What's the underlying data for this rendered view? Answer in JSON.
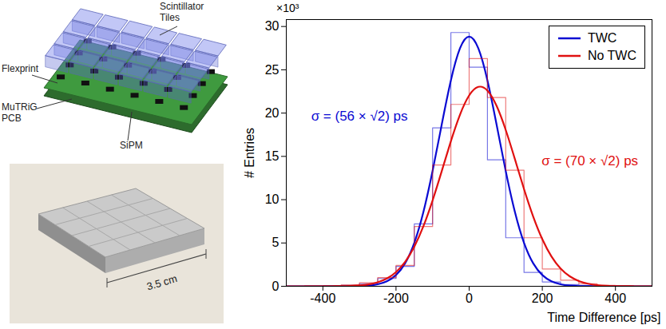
{
  "chart_data": {
    "type": "histogram",
    "xlabel": "Time Difference [ps]",
    "ylabel": "# Entries",
    "y_multiplier": "×10³",
    "xlim": [
      -500,
      500
    ],
    "xticks": [
      -400,
      -200,
      0,
      200,
      400
    ],
    "ylim": [
      0,
      30.8
    ],
    "yticks": [
      0,
      5,
      10,
      15,
      20,
      25,
      30
    ],
    "grid": false,
    "legend": "top-right",
    "bins": [
      -500,
      -450,
      -400,
      -350,
      -300,
      -250,
      -200,
      -150,
      -100,
      -50,
      0,
      50,
      100,
      150,
      200,
      250,
      300,
      350,
      400,
      450,
      500
    ],
    "fit_x": [
      -500,
      -475,
      -450,
      -425,
      -400,
      -375,
      -350,
      -325,
      -300,
      -275,
      -250,
      -225,
      -200,
      -175,
      -150,
      -125,
      -100,
      -75,
      -50,
      -25,
      0,
      25,
      50,
      75,
      100,
      125,
      150,
      175,
      200,
      225,
      250,
      275,
      300,
      325,
      350,
      375,
      400,
      425,
      450,
      475,
      500
    ],
    "series": [
      {
        "name": "TWC",
        "color": "#0a0ad2",
        "values": [
          0,
          0.02,
          0.05,
          0.1,
          0.3,
          0.9,
          2.3,
          7.2,
          18.3,
          29.3,
          25.3,
          14.6,
          5.6,
          1.6,
          0.5,
          0.2,
          0.1,
          0.05,
          0.02,
          0
        ],
        "fit_values": [
          0,
          0,
          0,
          0,
          0,
          0,
          0,
          0,
          0.02,
          0.07,
          0.2,
          0.5,
          1.2,
          2.5,
          4.8,
          8.4,
          13.2,
          18.7,
          24.0,
          27.9,
          29.3,
          27.9,
          24.0,
          18.7,
          13.2,
          8.4,
          4.8,
          2.5,
          1.2,
          0.5,
          0.2,
          0.07,
          0.02,
          0,
          0,
          0,
          0,
          0,
          0,
          0,
          0
        ]
      },
      {
        "name": "No TWC",
        "color": "#e01010",
        "values": [
          0,
          0.03,
          0.07,
          0.15,
          0.4,
          1.0,
          2.4,
          6.9,
          14.0,
          21.0,
          26.3,
          21.8,
          13.4,
          5.6,
          2.0,
          0.7,
          0.3,
          0.1,
          0.05,
          0.02
        ],
        "fit_values": [
          0,
          0,
          0,
          0,
          0,
          0,
          0.01,
          0.04,
          0.09,
          0.2,
          0.43,
          0.84,
          1.57,
          2.73,
          4.46,
          6.84,
          9.84,
          13.27,
          16.81,
          19.97,
          22.25,
          23.27,
          22.83,
          21.01,
          18.15,
          14.71,
          11.17,
          7.97,
          5.34,
          3.35,
          1.97,
          1.09,
          0.57,
          0.27,
          0.13,
          0.05,
          0.02,
          0.01,
          0,
          0,
          0
        ]
      }
    ],
    "annotations": [
      {
        "text": "σ = (56 × √2) ps",
        "x": -300,
        "y": 19.6,
        "color": "#0a0ad2"
      },
      {
        "text": "σ = (70 × √2) ps",
        "x": 330,
        "y": 14.5,
        "color": "#e01010"
      }
    ]
  },
  "diagram": {
    "labels": {
      "scintillator": "Scintillator Tiles",
      "flexprint": "Flexprint",
      "pcb": "MuTRiG PCB",
      "sipm": "SiPM"
    }
  },
  "photo": {
    "scale_label": "3.5 cm"
  }
}
